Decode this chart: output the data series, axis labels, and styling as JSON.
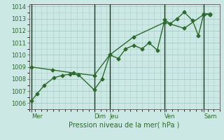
{
  "xlabel": "Pression niveau de la mer( hPa )",
  "bg_color": "#cce8e4",
  "grid_color": "#aaceca",
  "line_color": "#2d6a2d",
  "vline_color": "#1a3a1a",
  "ylim": [
    1005.5,
    1014.2
  ],
  "yticks": [
    1006,
    1007,
    1008,
    1009,
    1010,
    1011,
    1012,
    1013,
    1014
  ],
  "day_labels": [
    "Mer",
    "Dim",
    "Jeu",
    "Ven",
    "Sam"
  ],
  "day_positions": [
    0.0,
    2.67,
    3.33,
    5.67,
    7.33
  ],
  "vline_positions": [
    0.0,
    2.67,
    3.33,
    5.67,
    7.33
  ],
  "xlim": [
    -0.1,
    8.0
  ],
  "series1_x": [
    0.0,
    0.25,
    0.55,
    0.95,
    1.3,
    1.65,
    2.0,
    2.67,
    3.0,
    3.33,
    3.7,
    4.0,
    4.35,
    4.7,
    5.0,
    5.35,
    5.67,
    5.9,
    6.2,
    6.5,
    6.85,
    7.1,
    7.33,
    7.6
  ],
  "series1_y": [
    1006.2,
    1006.8,
    1007.5,
    1008.1,
    1008.3,
    1008.4,
    1008.35,
    1007.1,
    1008.0,
    1010.0,
    1009.7,
    1010.5,
    1010.8,
    1010.5,
    1011.0,
    1010.4,
    1012.9,
    1012.6,
    1013.0,
    1013.55,
    1012.85,
    1011.6,
    1013.4,
    1013.4
  ],
  "series2_x": [
    0.0,
    0.9,
    1.8,
    2.67,
    3.33,
    4.35,
    5.67,
    6.5,
    7.33,
    7.6
  ],
  "series2_y": [
    1009.0,
    1008.75,
    1008.5,
    1008.3,
    1010.0,
    1011.5,
    1012.7,
    1012.2,
    1013.35,
    1013.35
  ],
  "xlabel_fontsize": 7,
  "ytick_fontsize": 6,
  "xtick_fontsize": 6
}
